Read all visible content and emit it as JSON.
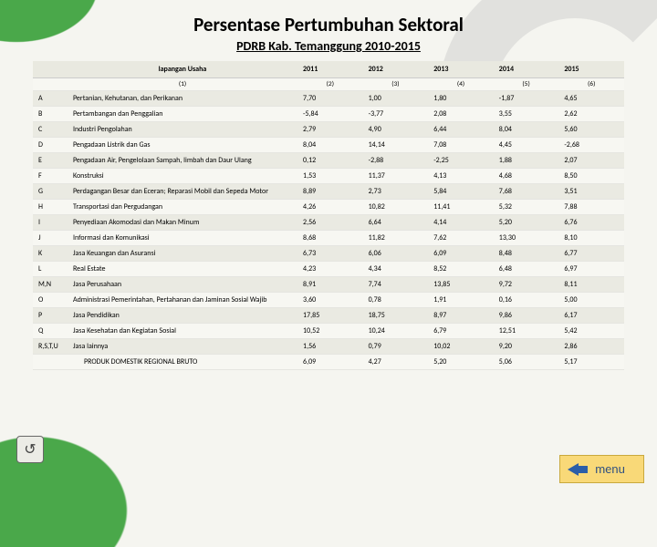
{
  "title": "Persentase Pertumbuhan Sektoral",
  "subtitle": "PDRB Kab. Temanggung 2010-2015",
  "header": {
    "label_usaha": "lapangan Usaha",
    "years": [
      "2011",
      "2012",
      "2013",
      "2014",
      "2015"
    ]
  },
  "sep": [
    "(1)",
    "(2)",
    "(3)",
    "(4)",
    "(5)",
    "(6)"
  ],
  "rows": [
    {
      "code": "A",
      "name": "Pertanian, Kehutanan, dan Perikanan",
      "v": [
        "7,70",
        "1,00",
        "1,80",
        "-1,87",
        "4,65"
      ]
    },
    {
      "code": "B",
      "name": "Pertambangan dan Penggalian",
      "v": [
        "-5,84",
        "-3,77",
        "2,08",
        "3,55",
        "2,62"
      ]
    },
    {
      "code": "C",
      "name": "Industri Pengolahan",
      "v": [
        "2,79",
        "4,90",
        "6,44",
        "8,04",
        "5,60"
      ]
    },
    {
      "code": "D",
      "name": "Pengadaan Listrik dan Gas",
      "v": [
        "8,04",
        "14,14",
        "7,08",
        "4,45",
        "-2,68"
      ]
    },
    {
      "code": "E",
      "name": "Pengadaan Air, Pengelolaan Sampah, limbah dan Daur Ulang",
      "v": [
        "0,12",
        "-2,88",
        "-2,25",
        "1,88",
        "2,07"
      ]
    },
    {
      "code": "F",
      "name": "Konstruksi",
      "v": [
        "1,53",
        "11,37",
        "4,13",
        "4,68",
        "8,50"
      ]
    },
    {
      "code": "G",
      "name": "Perdagangan Besar dan Eceran; Reparasi Mobil dan Sepeda Motor",
      "v": [
        "8,89",
        "2,73",
        "5,84",
        "7,68",
        "3,51"
      ]
    },
    {
      "code": "H",
      "name": "Transportasi dan Pergudangan",
      "v": [
        "4,26",
        "10,82",
        "11,41",
        "5,32",
        "7,88"
      ]
    },
    {
      "code": "I",
      "name": "Penyediaan Akomodasi dan Makan Minum",
      "v": [
        "2,56",
        "6,64",
        "4,14",
        "5,20",
        "6,76"
      ]
    },
    {
      "code": "J",
      "name": "Informasi dan Komunikasi",
      "v": [
        "8,68",
        "11,82",
        "7,62",
        "13,30",
        "8,10"
      ]
    },
    {
      "code": "K",
      "name": "Jasa Keuangan dan Asuransi",
      "v": [
        "6,73",
        "6,06",
        "6,09",
        "8,48",
        "6,77"
      ]
    },
    {
      "code": "L",
      "name": "Real Estate",
      "v": [
        "4,23",
        "4,34",
        "8,52",
        "6,48",
        "6,97"
      ]
    },
    {
      "code": "M,N",
      "name": "Jasa Perusahaan",
      "v": [
        "8,91",
        "7,74",
        "13,85",
        "9,72",
        "8,11"
      ]
    },
    {
      "code": "O",
      "name": "Administrasi Pemerintahan, Pertahanan dan Jaminan Sosial Wajib",
      "v": [
        "3,60",
        "0,78",
        "1,91",
        "0,16",
        "5,00"
      ]
    },
    {
      "code": "P",
      "name": "Jasa Pendidikan",
      "v": [
        "17,85",
        "18,75",
        "8,97",
        "9,86",
        "6,17"
      ]
    },
    {
      "code": "Q",
      "name": "Jasa Kesehatan dan Kegiatan Sosial",
      "v": [
        "10,52",
        "10,24",
        "6,79",
        "12,51",
        "5,42"
      ]
    },
    {
      "code": "R,S,T,U",
      "name": "Jasa lainnya",
      "v": [
        "1,56",
        "0,79",
        "10,02",
        "9,20",
        "2,86"
      ]
    }
  ],
  "total": {
    "name": "PRODUK DOMESTIK REGIONAL BRUTO",
    "v": [
      "6,09",
      "4,27",
      "5,20",
      "5,06",
      "5,17"
    ]
  },
  "menu": "menu"
}
